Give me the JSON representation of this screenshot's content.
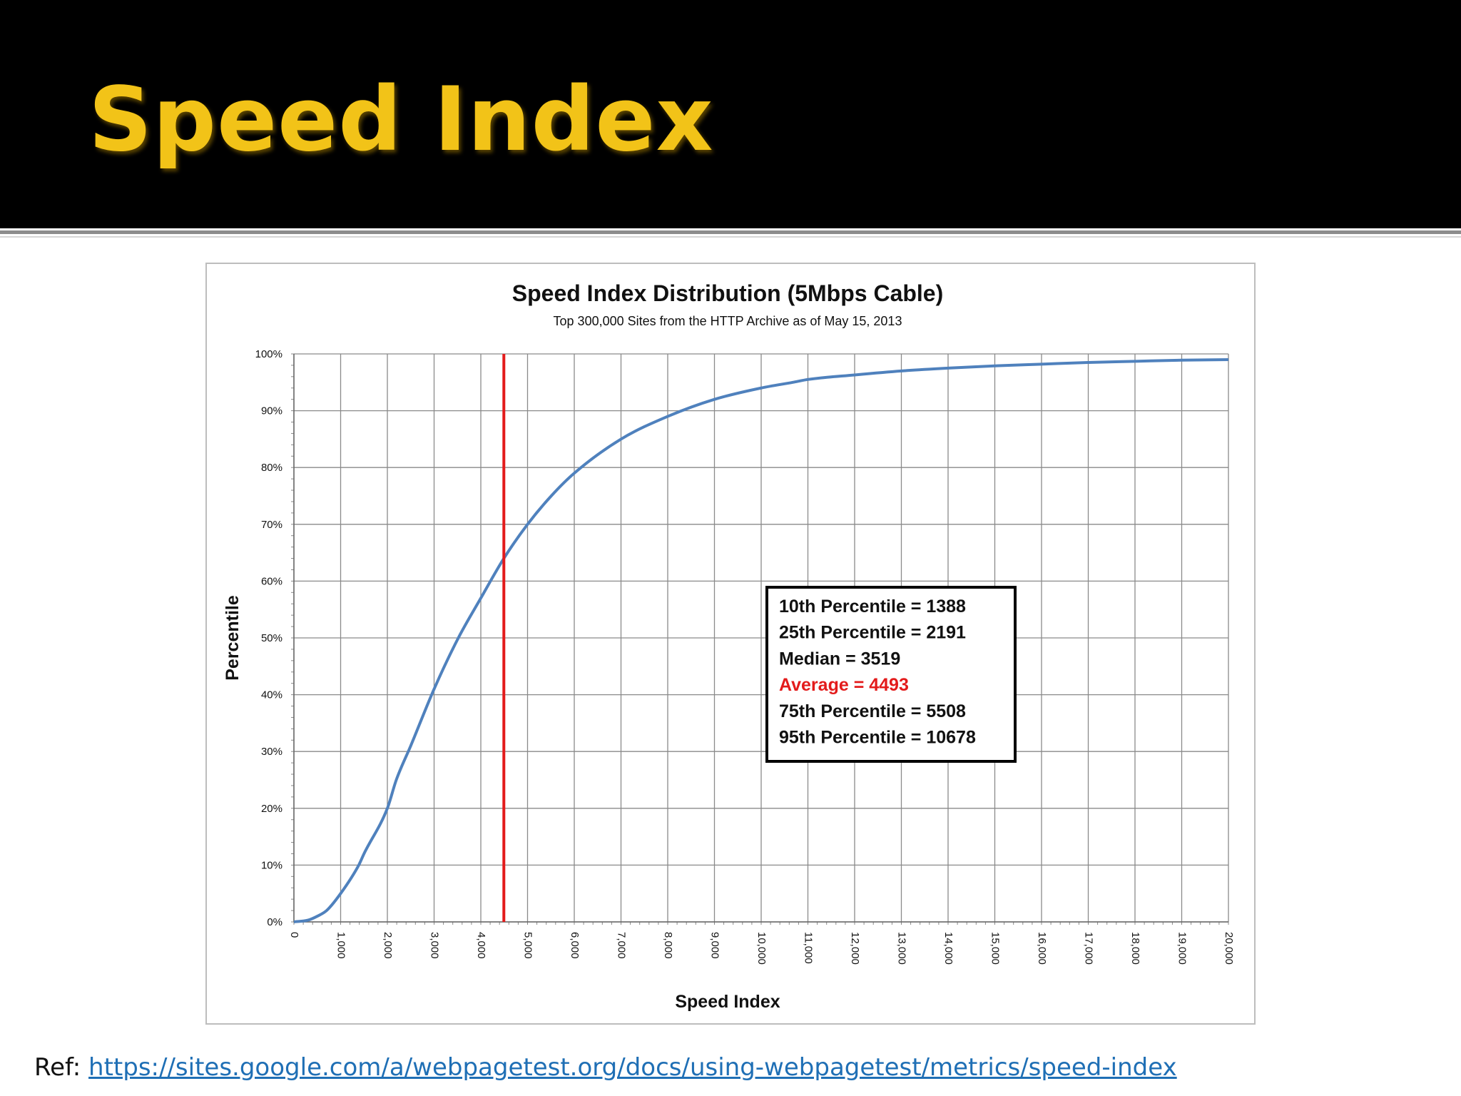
{
  "slide": {
    "title": "Speed Index",
    "ref_label": "Ref:",
    "ref_link": "https://sites.google.com/a/webpagetest.org/docs/using-webpagetest/metrics/speed-index"
  },
  "colors": {
    "title": "#f2c318",
    "curve": "#4f81bd",
    "marker": "#e31b1b",
    "highlight": "#e31b1b"
  },
  "chart_data": {
    "type": "line",
    "title": "Speed Index Distribution (5Mbps Cable)",
    "subtitle": "Top 300,000 Sites from the HTTP  Archive as of May 15, 2013",
    "xlabel": "Speed Index",
    "ylabel": "Percentile",
    "xlim": [
      0,
      20000
    ],
    "ylim": [
      0,
      100
    ],
    "grid": true,
    "x_ticks": [
      "0",
      "1,000",
      "2,000",
      "3,000",
      "4,000",
      "5,000",
      "6,000",
      "7,000",
      "8,000",
      "9,000",
      "10,000",
      "11,000",
      "12,000",
      "13,000",
      "14,000",
      "15,000",
      "16,000",
      "17,000",
      "18,000",
      "19,000",
      "20,000"
    ],
    "y_ticks": [
      "0%",
      "10%",
      "20%",
      "30%",
      "40%",
      "50%",
      "60%",
      "70%",
      "80%",
      "90%",
      "100%"
    ],
    "series": [
      {
        "x": [
          0,
          300,
          500,
          700,
          1000,
          1388,
          1500,
          2000,
          2191,
          2500,
          3000,
          3519,
          4000,
          4493,
          5000,
          5508,
          6000,
          7000,
          8000,
          9000,
          10000,
          10678,
          11000,
          12000,
          13000,
          14000,
          15000,
          16000,
          17000,
          18000,
          19000,
          20000
        ],
        "y": [
          0,
          0.3,
          1,
          2,
          5,
          10,
          12,
          20,
          25,
          31,
          41,
          50,
          57,
          64,
          70,
          75,
          79,
          85,
          89,
          92,
          94,
          95,
          95.5,
          96.3,
          97,
          97.5,
          97.9,
          98.2,
          98.5,
          98.7,
          98.9,
          99
        ]
      }
    ],
    "reference_line": {
      "x": 4493
    },
    "annotation_box": [
      {
        "text": "10th Percentile = 1388",
        "highlight": false
      },
      {
        "text": "25th Percentile = 2191",
        "highlight": false
      },
      {
        "text": "Median = 3519",
        "highlight": false
      },
      {
        "text": "Average = 4493",
        "highlight": true
      },
      {
        "text": "75th Percentile = 5508",
        "highlight": false
      },
      {
        "text": "95th Percentile = 10678",
        "highlight": false
      }
    ]
  }
}
